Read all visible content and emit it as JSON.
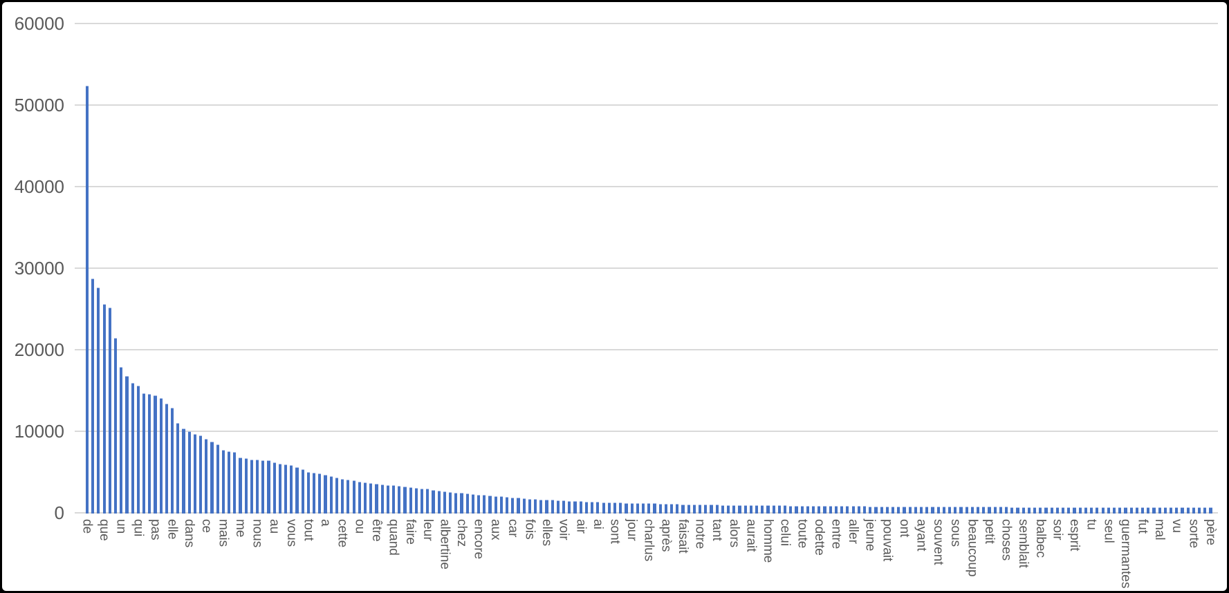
{
  "chart_data": {
    "type": "bar",
    "title": "",
    "xlabel": "",
    "ylabel": "",
    "ylim": [
      0,
      60000
    ],
    "yticks": [
      0,
      10000,
      20000,
      30000,
      40000,
      50000,
      60000
    ],
    "grid": true,
    "legend": false,
    "bar_color": "#4472C4",
    "gridline_color": "#D9D9D9",
    "axis_text_color": "#595959",
    "x_label_every_n_bars": 3,
    "x_labels": [
      "de",
      "que",
      "un",
      "qui",
      "pas",
      "elle",
      "dans",
      "ce",
      "mais",
      "me",
      "nous",
      "au",
      "vous",
      "tout",
      "a",
      "cette",
      "ou",
      "être",
      "quand",
      "faire",
      "leur",
      "albertine",
      "chez",
      "encore",
      "aux",
      "car",
      "fois",
      "elles",
      "voir",
      "air",
      "ai",
      "sont",
      "jour",
      "charlus",
      "après",
      "faisait",
      "notre",
      "tant",
      "alors",
      "aurait",
      "homme",
      "celui",
      "toute",
      "odette",
      "entre",
      "aller",
      "jeune",
      "pouvait",
      "ont",
      "ayant",
      "souvent",
      "sous",
      "beaucoup",
      "petit",
      "choses",
      "semblait",
      "balbec",
      "soir",
      "esprit",
      "tu",
      "seul",
      "guermantes",
      "fut",
      "mal",
      "vu",
      "sorte",
      "père"
    ],
    "values": [
      52400,
      28700,
      27650,
      25600,
      25200,
      21450,
      17900,
      16800,
      15900,
      15600,
      14650,
      14550,
      14400,
      14050,
      13400,
      12900,
      11000,
      10350,
      10000,
      9650,
      9500,
      9070,
      8730,
      8400,
      7700,
      7550,
      7450,
      6800,
      6700,
      6550,
      6500,
      6450,
      6400,
      6200,
      6050,
      5950,
      5880,
      5600,
      5300,
      5000,
      4900,
      4800,
      4650,
      4500,
      4300,
      4150,
      4050,
      3950,
      3840,
      3750,
      3660,
      3580,
      3500,
      3430,
      3360,
      3280,
      3210,
      3140,
      3070,
      3000,
      2940,
      2820,
      2700,
      2600,
      2550,
      2500,
      2460,
      2380,
      2310,
      2240,
      2180,
      2120,
      2050,
      2000,
      1950,
      1900,
      1840,
      1780,
      1720,
      1680,
      1650,
      1620,
      1580,
      1540,
      1500,
      1460,
      1430,
      1400,
      1370,
      1350,
      1330,
      1310,
      1290,
      1270,
      1240,
      1220,
      1200,
      1190,
      1180,
      1170,
      1150,
      1120,
      1100,
      1080,
      1065,
      1050,
      1030,
      1015,
      1000,
      990,
      982,
      975,
      966,
      958,
      950,
      943,
      936,
      930,
      923,
      916,
      910,
      903,
      896,
      890,
      883,
      876,
      870,
      863,
      856,
      850,
      845,
      840,
      835,
      830,
      825,
      820,
      815,
      810,
      805,
      800,
      795,
      790,
      787,
      783,
      780,
      777,
      773,
      770,
      767,
      763,
      760,
      757,
      753,
      750,
      747,
      743,
      740,
      737,
      733,
      730,
      727,
      724,
      722,
      719,
      717,
      715,
      712,
      710,
      708,
      705,
      702,
      700,
      698,
      695,
      693,
      691,
      688,
      686,
      684,
      681,
      679,
      677,
      674,
      672,
      670,
      667,
      665,
      663,
      660,
      658,
      655,
      653,
      650,
      648,
      645,
      643,
      640,
      638,
      636
    ]
  }
}
